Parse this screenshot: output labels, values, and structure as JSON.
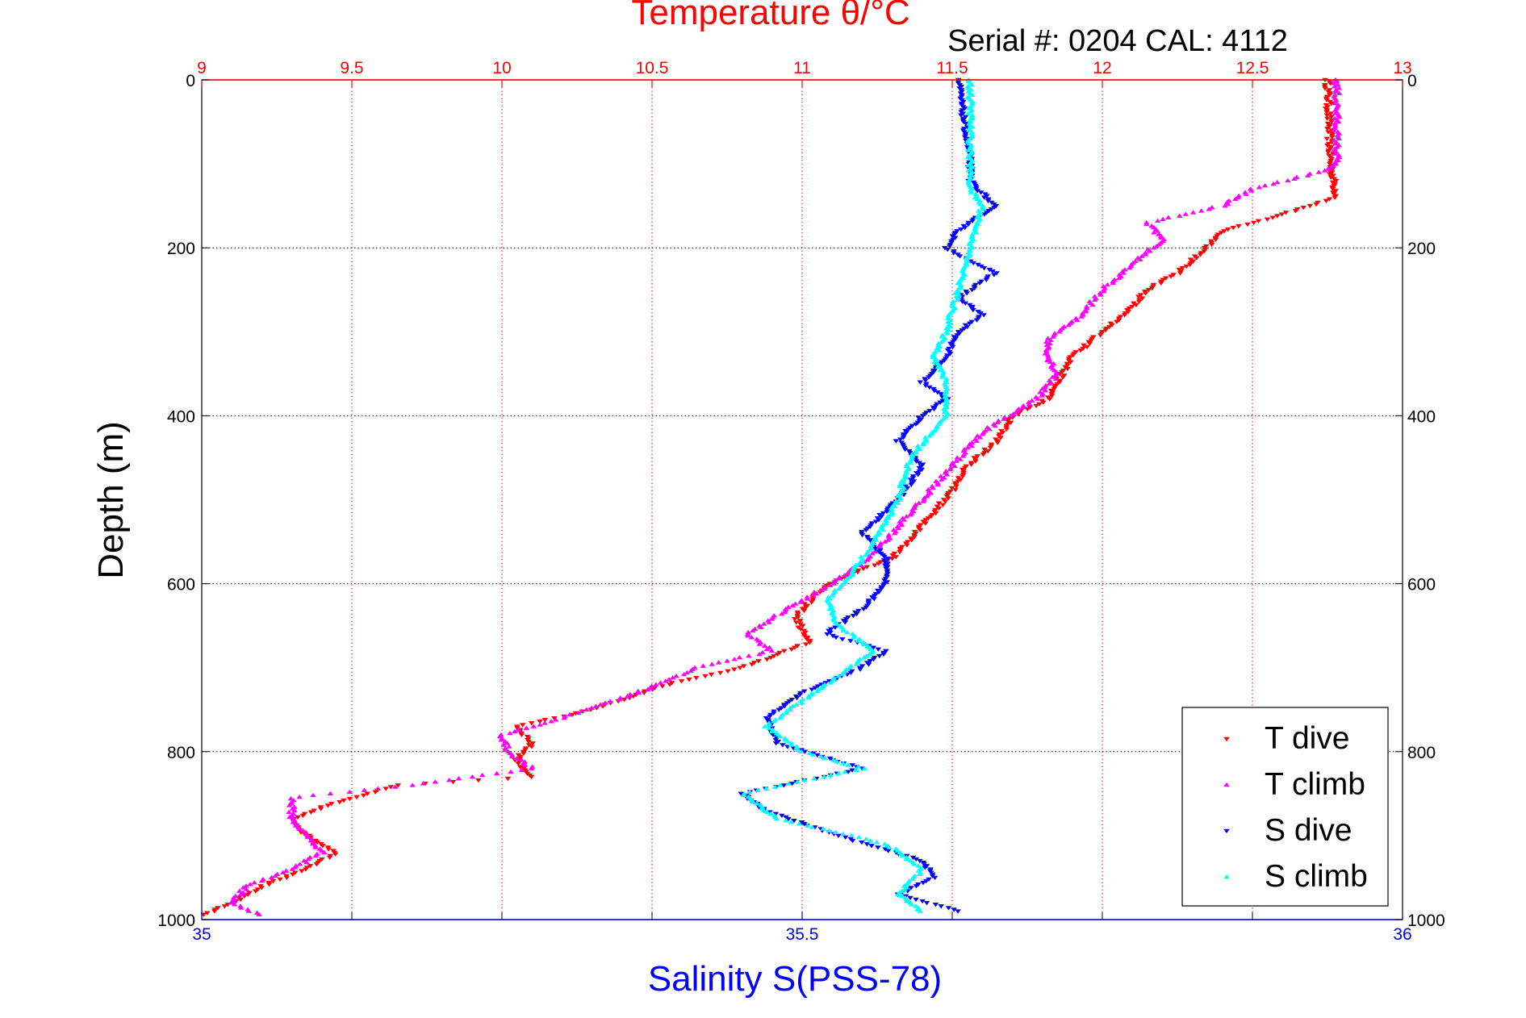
{
  "chart_data": {
    "type": "scatter",
    "title_top": "Temperature θ/°C",
    "serial_label": "Serial #: 0204  CAL: 4112",
    "ylabel": "Depth (m)",
    "xlabel_bottom": "Salinity S(PSS-78)",
    "temperature_axis": {
      "range": [
        9,
        13
      ],
      "ticks": [
        "9",
        "9.5",
        "10",
        "10.5",
        "11",
        "11.5",
        "12",
        "12.5",
        "13"
      ],
      "color": "#ff0000"
    },
    "salinity_axis": {
      "range": [
        35,
        36
      ],
      "ticks": [
        "35",
        "35.5",
        "36"
      ],
      "color": "#0000ff"
    },
    "depth_axis": {
      "range": [
        0,
        1000
      ],
      "reversed": true,
      "ticks": [
        "0",
        "200",
        "400",
        "600",
        "800",
        "1000"
      ]
    },
    "grid": true,
    "legend_position": "bottom-right",
    "series": [
      {
        "name": "T dive",
        "axis": "temperature",
        "color": "#ff0000",
        "marker": "triangle-down",
        "profile": [
          [
            0,
            12.75
          ],
          [
            100,
            12.76
          ],
          [
            140,
            12.78
          ],
          [
            160,
            12.6
          ],
          [
            180,
            12.4
          ],
          [
            200,
            12.35
          ],
          [
            230,
            12.25
          ],
          [
            250,
            12.15
          ],
          [
            270,
            12.1
          ],
          [
            300,
            12.0
          ],
          [
            330,
            11.9
          ],
          [
            360,
            11.85
          ],
          [
            380,
            11.82
          ],
          [
            400,
            11.7
          ],
          [
            430,
            11.65
          ],
          [
            460,
            11.55
          ],
          [
            490,
            11.5
          ],
          [
            510,
            11.45
          ],
          [
            540,
            11.38
          ],
          [
            570,
            11.3
          ],
          [
            590,
            11.15
          ],
          [
            610,
            11.05
          ],
          [
            640,
            10.98
          ],
          [
            670,
            11.02
          ],
          [
            700,
            10.8
          ],
          [
            720,
            10.55
          ],
          [
            750,
            10.3
          ],
          [
            770,
            10.05
          ],
          [
            790,
            10.1
          ],
          [
            810,
            10.05
          ],
          [
            830,
            10.1
          ],
          [
            840,
            9.65
          ],
          [
            860,
            9.45
          ],
          [
            880,
            9.3
          ],
          [
            900,
            9.35
          ],
          [
            920,
            9.45
          ],
          [
            940,
            9.35
          ],
          [
            960,
            9.2
          ],
          [
            980,
            9.1
          ],
          [
            995,
            9.0
          ]
        ]
      },
      {
        "name": "T climb",
        "axis": "temperature",
        "color": "#ff00ff",
        "marker": "triangle-up",
        "profile": [
          [
            0,
            12.78
          ],
          [
            100,
            12.78
          ],
          [
            110,
            12.72
          ],
          [
            130,
            12.5
          ],
          [
            150,
            12.4
          ],
          [
            170,
            12.15
          ],
          [
            190,
            12.2
          ],
          [
            220,
            12.1
          ],
          [
            250,
            12.0
          ],
          [
            280,
            11.93
          ],
          [
            310,
            11.82
          ],
          [
            330,
            11.82
          ],
          [
            350,
            11.85
          ],
          [
            380,
            11.78
          ],
          [
            420,
            11.6
          ],
          [
            460,
            11.5
          ],
          [
            500,
            11.4
          ],
          [
            540,
            11.3
          ],
          [
            570,
            11.22
          ],
          [
            600,
            11.1
          ],
          [
            630,
            10.95
          ],
          [
            660,
            10.82
          ],
          [
            680,
            10.9
          ],
          [
            700,
            10.65
          ],
          [
            730,
            10.45
          ],
          [
            760,
            10.2
          ],
          [
            780,
            10.0
          ],
          [
            800,
            10.02
          ],
          [
            820,
            10.1
          ],
          [
            840,
            9.7
          ],
          [
            855,
            9.3
          ],
          [
            880,
            9.3
          ],
          [
            900,
            9.35
          ],
          [
            920,
            9.4
          ],
          [
            940,
            9.3
          ],
          [
            960,
            9.15
          ],
          [
            980,
            9.1
          ],
          [
            995,
            9.2
          ]
        ]
      },
      {
        "name": "S dive",
        "axis": "salinity",
        "color": "#0000ff",
        "marker": "triangle-down",
        "profile": [
          [
            0,
            35.63
          ],
          [
            100,
            35.64
          ],
          [
            120,
            35.64
          ],
          [
            150,
            35.66
          ],
          [
            180,
            35.63
          ],
          [
            200,
            35.62
          ],
          [
            230,
            35.66
          ],
          [
            260,
            35.63
          ],
          [
            280,
            35.65
          ],
          [
            300,
            35.63
          ],
          [
            330,
            35.62
          ],
          [
            360,
            35.6
          ],
          [
            380,
            35.62
          ],
          [
            400,
            35.6
          ],
          [
            430,
            35.58
          ],
          [
            460,
            35.6
          ],
          [
            500,
            35.58
          ],
          [
            540,
            35.55
          ],
          [
            570,
            35.57
          ],
          [
            600,
            35.57
          ],
          [
            630,
            35.55
          ],
          [
            660,
            35.52
          ],
          [
            680,
            35.57
          ],
          [
            700,
            35.55
          ],
          [
            730,
            35.5
          ],
          [
            760,
            35.47
          ],
          [
            790,
            35.48
          ],
          [
            820,
            35.55
          ],
          [
            850,
            35.45
          ],
          [
            870,
            35.47
          ],
          [
            900,
            35.53
          ],
          [
            930,
            35.6
          ],
          [
            950,
            35.61
          ],
          [
            970,
            35.58
          ],
          [
            990,
            35.63
          ]
        ]
      },
      {
        "name": "S climb",
        "axis": "salinity",
        "color": "#00ffff",
        "marker": "triangle-up",
        "profile": [
          [
            0,
            35.64
          ],
          [
            100,
            35.64
          ],
          [
            130,
            35.64
          ],
          [
            150,
            35.65
          ],
          [
            200,
            35.64
          ],
          [
            250,
            35.63
          ],
          [
            300,
            35.62
          ],
          [
            330,
            35.61
          ],
          [
            360,
            35.62
          ],
          [
            400,
            35.62
          ],
          [
            450,
            35.59
          ],
          [
            500,
            35.58
          ],
          [
            550,
            35.56
          ],
          [
            590,
            35.54
          ],
          [
            620,
            35.52
          ],
          [
            650,
            35.53
          ],
          [
            680,
            35.56
          ],
          [
            710,
            35.53
          ],
          [
            740,
            35.5
          ],
          [
            770,
            35.47
          ],
          [
            800,
            35.5
          ],
          [
            820,
            35.55
          ],
          [
            850,
            35.45
          ],
          [
            880,
            35.48
          ],
          [
            910,
            35.57
          ],
          [
            940,
            35.6
          ],
          [
            970,
            35.58
          ],
          [
            990,
            35.6
          ]
        ]
      }
    ]
  }
}
